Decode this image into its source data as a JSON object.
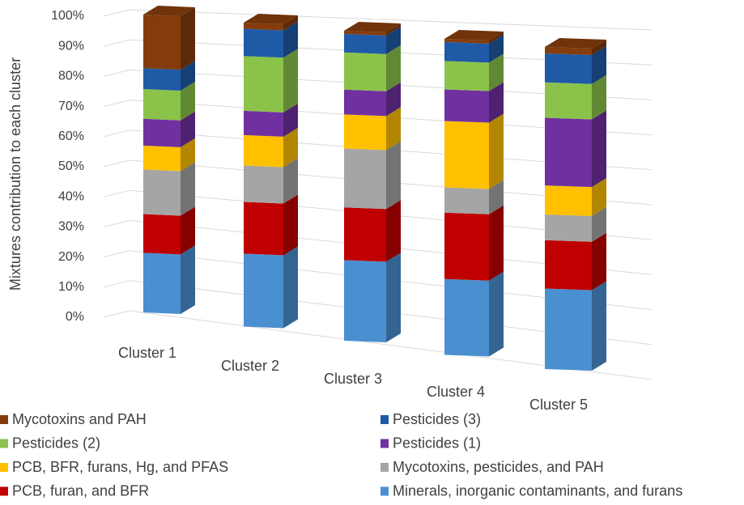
{
  "chart_data": {
    "type": "bar3d-stacked",
    "y_label": "Mixtures contribution to each cluster",
    "categories": [
      "Cluster 1",
      "Cluster 2",
      "Cluster 3",
      "Cluster 4",
      "Cluster 5"
    ],
    "ylim": [
      0,
      100
    ],
    "yticks": [
      {
        "value": 0,
        "label": "0%"
      },
      {
        "value": 10,
        "label": "10%"
      },
      {
        "value": 20,
        "label": "20%"
      },
      {
        "value": 30,
        "label": "30%"
      },
      {
        "value": 40,
        "label": "40%"
      },
      {
        "value": 50,
        "label": "50%"
      },
      {
        "value": 60,
        "label": "60%"
      },
      {
        "value": 70,
        "label": "70%"
      },
      {
        "value": 80,
        "label": "80%"
      },
      {
        "value": 90,
        "label": "90%"
      },
      {
        "value": 100,
        "label": "100%"
      }
    ],
    "grid": true,
    "series": [
      {
        "name": "Minerals, inorganic contaminants, and furans",
        "color": "#4a90d0",
        "values": [
          20,
          24,
          26,
          24,
          25
        ]
      },
      {
        "name": "PCB, furan, and BFR",
        "color": "#c00000",
        "values": [
          13,
          17,
          17,
          21,
          15
        ]
      },
      {
        "name": "Mycotoxins, pesticides, and PAH",
        "color": "#a5a5a5",
        "values": [
          15,
          12,
          19,
          8,
          8
        ]
      },
      {
        "name": "PCB, BFR, furans, Hg, and PFAS",
        "color": "#ffc000",
        "values": [
          8,
          10,
          11,
          21,
          9
        ]
      },
      {
        "name": "Pesticides (1)",
        "color": "#7030a0",
        "values": [
          9,
          8,
          8,
          10,
          21
        ]
      },
      {
        "name": "Pesticides (2)",
        "color": "#8bc34a",
        "values": [
          10,
          18,
          12,
          9,
          11
        ]
      },
      {
        "name": "Pesticides (3)",
        "color": "#1f5aa6",
        "values": [
          7,
          9,
          6,
          6,
          9
        ]
      },
      {
        "name": "Mycotoxins and PAH",
        "color": "#843c0c",
        "values": [
          18,
          2,
          1,
          1,
          2
        ]
      }
    ]
  }
}
